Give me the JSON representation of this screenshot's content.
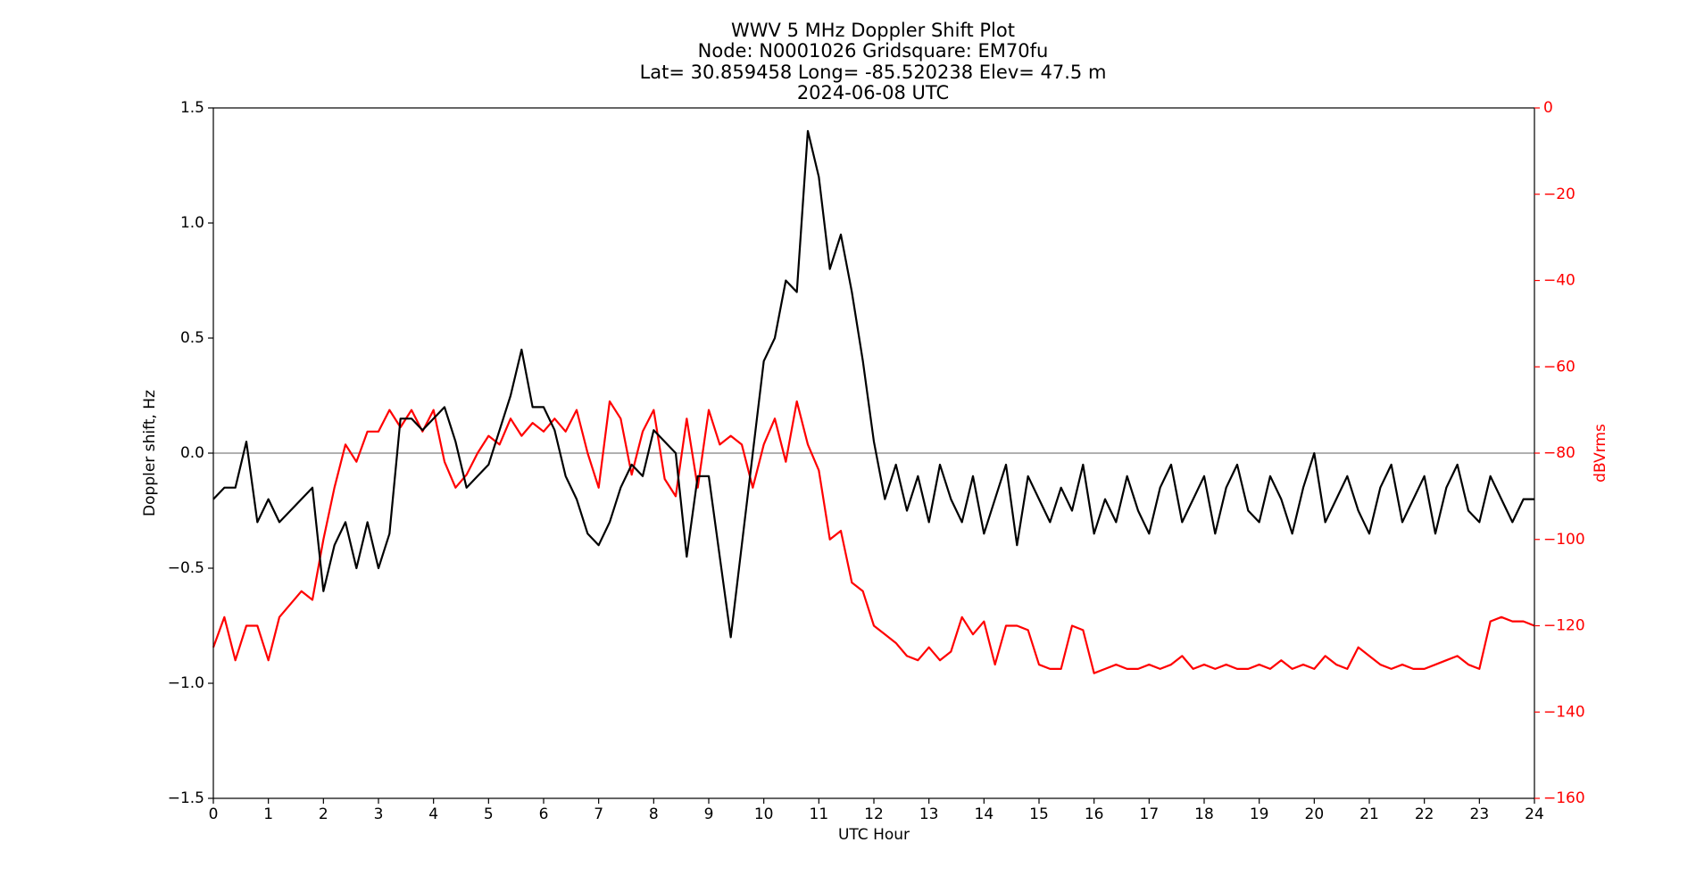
{
  "chart_data": {
    "type": "line",
    "title": [
      "WWV 5 MHz Doppler Shift Plot",
      "Node:  N0001026     Gridsquare:  EM70fu",
      "Lat= 30.859458    Long= -85.520238    Elev= 47.5 m",
      "2024-06-08  UTC"
    ],
    "x_label": "UTC Hour",
    "y_label": "Doppler shift, Hz",
    "y2_label": "dBVrms",
    "y2_color": "#ff0000",
    "xlim": [
      0,
      24
    ],
    "xticks": [
      0,
      1,
      2,
      3,
      4,
      5,
      6,
      7,
      8,
      9,
      10,
      11,
      12,
      13,
      14,
      15,
      16,
      17,
      18,
      19,
      20,
      21,
      22,
      23,
      24
    ],
    "ylim": [
      -1.5,
      1.5
    ],
    "yticks": [
      {
        "value": -1.5,
        "label": "−1.5"
      },
      {
        "value": -1.0,
        "label": "−1.0"
      },
      {
        "value": -0.5,
        "label": "−0.5"
      },
      {
        "value": 0,
        "label": "0.0"
      },
      0.5,
      {
        "value": 1.0,
        "label": "1.0"
      },
      1.5
    ],
    "y2lim": [
      -160,
      0
    ],
    "y2ticks": [
      {
        "value": -160,
        "label": "−160"
      },
      {
        "value": -140,
        "label": "−140"
      },
      {
        "value": -120,
        "label": "−120"
      },
      {
        "value": -100,
        "label": "−100"
      },
      {
        "value": -80,
        "label": "−80"
      },
      {
        "value": -60,
        "label": "−60"
      },
      {
        "value": -40,
        "label": "−40"
      },
      {
        "value": -20,
        "label": "−20"
      },
      0
    ],
    "reference_line": 0,
    "reference_color": "#808080",
    "x": [
      0,
      0.2,
      0.4,
      0.6,
      0.8,
      1,
      1.2,
      1.4,
      1.6,
      1.8,
      2,
      2.2,
      2.4,
      2.6,
      2.8,
      3,
      3.2,
      3.4,
      3.6,
      3.8,
      4,
      4.2,
      4.4,
      4.6,
      4.8,
      5,
      5.2,
      5.4,
      5.6,
      5.8,
      6,
      6.2,
      6.4,
      6.6,
      6.8,
      7,
      7.2,
      7.4,
      7.6,
      7.8,
      8,
      8.2,
      8.4,
      8.6,
      8.8,
      9,
      9.2,
      9.4,
      9.6,
      9.8,
      10,
      10.2,
      10.4,
      10.6,
      10.8,
      11,
      11.2,
      11.4,
      11.6,
      11.8,
      12,
      12.2,
      12.4,
      12.6,
      12.8,
      13,
      13.2,
      13.4,
      13.6,
      13.8,
      14,
      14.2,
      14.4,
      14.6,
      14.8,
      15,
      15.2,
      15.4,
      15.6,
      15.8,
      16,
      16.2,
      16.4,
      16.6,
      16.8,
      17,
      17.2,
      17.4,
      17.6,
      17.8,
      18,
      18.2,
      18.4,
      18.6,
      18.8,
      19,
      19.2,
      19.4,
      19.6,
      19.8,
      20,
      20.2,
      20.4,
      20.6,
      20.8,
      21,
      21.2,
      21.4,
      21.6,
      21.8,
      22,
      22.2,
      22.4,
      22.6,
      22.8,
      23,
      23.2,
      23.4,
      23.6,
      23.8,
      24
    ],
    "series": [
      {
        "color": "#000000",
        "values": [
          -0.2,
          -0.15,
          -0.15,
          0.05,
          -0.3,
          -0.2,
          -0.3,
          -0.25,
          -0.2,
          -0.15,
          -0.6,
          -0.4,
          -0.3,
          -0.5,
          -0.3,
          -0.5,
          -0.35,
          0.15,
          0.15,
          0.1,
          0.15,
          0.2,
          0.05,
          -0.15,
          -0.1,
          -0.05,
          0.1,
          0.25,
          0.45,
          0.2,
          0.2,
          0.1,
          -0.1,
          -0.2,
          -0.35,
          -0.4,
          -0.3,
          -0.15,
          -0.05,
          -0.1,
          0.1,
          0.05,
          0.0,
          -0.45,
          -0.1,
          -0.1,
          -0.45,
          -0.8,
          -0.4,
          0.0,
          0.4,
          0.5,
          0.75,
          0.7,
          1.4,
          1.2,
          0.8,
          0.95,
          0.7,
          0.4,
          0.05,
          -0.2,
          -0.05,
          -0.25,
          -0.1,
          -0.3,
          -0.05,
          -0.2,
          -0.3,
          -0.1,
          -0.35,
          -0.2,
          -0.05,
          -0.4,
          -0.1,
          -0.2,
          -0.3,
          -0.15,
          -0.25,
          -0.05,
          -0.35,
          -0.2,
          -0.3,
          -0.1,
          -0.25,
          -0.35,
          -0.15,
          -0.05,
          -0.3,
          -0.2,
          -0.1,
          -0.35,
          -0.15,
          -0.05,
          -0.25,
          -0.3,
          -0.1,
          -0.2,
          -0.35,
          -0.15,
          0.0,
          -0.3,
          -0.2,
          -0.1,
          -0.25,
          -0.35,
          -0.15,
          -0.05,
          -0.3,
          -0.2,
          -0.1,
          -0.35,
          -0.15,
          -0.05,
          -0.25,
          -0.3,
          -0.1,
          -0.2,
          -0.3,
          -0.2,
          -0.2
        ]
      },
      {
        "color": "#ff0000",
        "axis": "y2",
        "values": [
          -125,
          -118,
          -128,
          -120,
          -120,
          -128,
          -118,
          -115,
          -112,
          -114,
          -100,
          -88,
          -78,
          -82,
          -75,
          -75,
          -70,
          -74,
          -70,
          -75,
          -70,
          -82,
          -88,
          -85,
          -80,
          -76,
          -78,
          -72,
          -76,
          -73,
          -75,
          -72,
          -75,
          -70,
          -80,
          -88,
          -68,
          -72,
          -85,
          -75,
          -70,
          -86,
          -90,
          -72,
          -88,
          -70,
          -78,
          -76,
          -78,
          -88,
          -78,
          -72,
          -82,
          -68,
          -78,
          -84,
          -100,
          -98,
          -110,
          -112,
          -120,
          -122,
          -124,
          -127,
          -128,
          -125,
          -128,
          -126,
          -118,
          -122,
          -119,
          -129,
          -120,
          -120,
          -121,
          -129,
          -130,
          -130,
          -120,
          -121,
          -131,
          -130,
          -129,
          -130,
          -130,
          -129,
          -130,
          -129,
          -127,
          -130,
          -129,
          -130,
          -129,
          -130,
          -130,
          -129,
          -130,
          -128,
          -130,
          -129,
          -130,
          -127,
          -129,
          -130,
          -125,
          -127,
          -129,
          -130,
          -129,
          -130,
          -130,
          -129,
          -128,
          -127,
          -129,
          -130,
          -119,
          -118,
          -119,
          -119,
          -120
        ]
      }
    ]
  }
}
